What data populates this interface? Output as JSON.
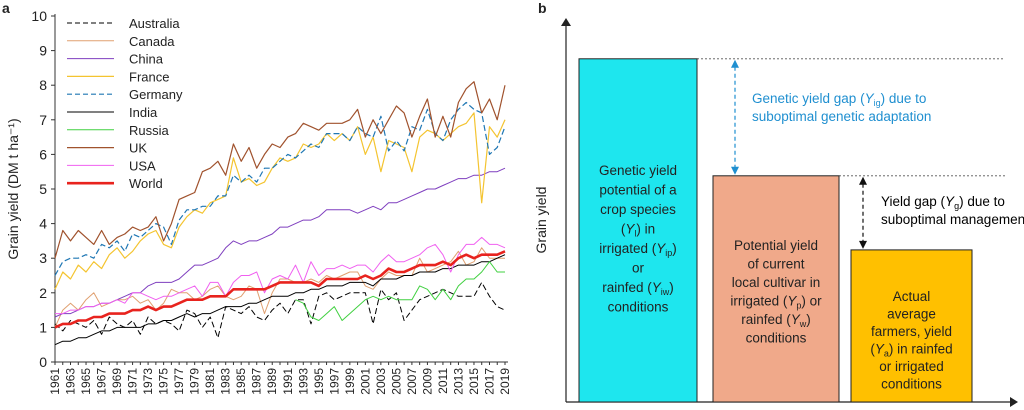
{
  "panel_a": {
    "label": "a"
  },
  "panel_b": {
    "label": "b"
  },
  "chart_data": [
    {
      "type": "line",
      "ylabel": "Grain yield (DM t ha⁻¹)",
      "ylim": [
        0,
        10
      ],
      "yticks": [
        0,
        1,
        2,
        3,
        4,
        5,
        6,
        7,
        8,
        9,
        10
      ],
      "x": [
        1961,
        1962,
        1963,
        1964,
        1965,
        1966,
        1967,
        1968,
        1969,
        1970,
        1971,
        1972,
        1973,
        1974,
        1975,
        1976,
        1977,
        1978,
        1979,
        1980,
        1981,
        1982,
        1983,
        1984,
        1985,
        1986,
        1987,
        1988,
        1989,
        1990,
        1991,
        1992,
        1993,
        1994,
        1995,
        1996,
        1997,
        1998,
        1999,
        2000,
        2001,
        2002,
        2003,
        2004,
        2005,
        2006,
        2007,
        2008,
        2009,
        2010,
        2011,
        2012,
        2013,
        2014,
        2015,
        2016,
        2017,
        2018,
        2019
      ],
      "xticks": [
        "1961",
        "1963",
        "1965",
        "1967",
        "1969",
        "1971",
        "1973",
        "1975",
        "1977",
        "1979",
        "1981",
        "1983",
        "1985",
        "1987",
        "1989",
        "1991",
        "1993",
        "1995",
        "1997",
        "1999",
        "2001",
        "2003",
        "2005",
        "2007",
        "2009",
        "2011",
        "2013",
        "2015",
        "2017",
        "2019"
      ],
      "legend_position": "top-left",
      "series": [
        {
          "name": "Australia",
          "color": "#000000",
          "dash": "dashed",
          "width": 1,
          "values": [
            1.1,
            0.9,
            1.2,
            1.1,
            1.0,
            1.2,
            0.8,
            1.3,
            1.1,
            1.0,
            1.2,
            0.8,
            1.3,
            1.1,
            1.2,
            1.1,
            0.9,
            1.5,
            1.4,
            1.0,
            1.3,
            0.7,
            1.6,
            1.5,
            1.4,
            1.6,
            1.3,
            1.2,
            1.5,
            1.7,
            1.4,
            1.8,
            1.8,
            1.1,
            1.9,
            2.0,
            1.8,
            1.9,
            2.0,
            2.0,
            2.0,
            1.1,
            2.1,
            1.8,
            2.0,
            1.2,
            1.5,
            1.8,
            1.9,
            2.0,
            2.1,
            2.0,
            1.9,
            1.9,
            1.9,
            2.3,
            1.9,
            1.6,
            1.5
          ]
        },
        {
          "name": "Canada",
          "color": "#e0a070",
          "dash": "solid",
          "width": 1,
          "values": [
            1.0,
            1.5,
            1.7,
            1.5,
            1.8,
            2.0,
            1.6,
            1.7,
            1.8,
            1.8,
            1.9,
            1.7,
            1.8,
            1.5,
            1.7,
            2.1,
            2.0,
            2.0,
            1.8,
            1.9,
            2.1,
            2.2,
            1.9,
            1.8,
            1.9,
            2.2,
            2.1,
            1.4,
            2.0,
            2.4,
            2.4,
            2.3,
            2.3,
            2.4,
            2.3,
            2.5,
            2.4,
            2.5,
            2.6,
            2.6,
            2.2,
            2.1,
            2.4,
            2.6,
            2.5,
            2.5,
            2.5,
            3.0,
            2.6,
            2.7,
            2.8,
            2.9,
            3.2,
            2.8,
            2.9,
            3.3,
            3.0,
            3.0,
            3.0
          ]
        },
        {
          "name": "China",
          "color": "#7f3fbf",
          "dash": "solid",
          "width": 1,
          "values": [
            1.3,
            1.4,
            1.4,
            1.5,
            1.6,
            1.6,
            1.7,
            1.7,
            1.8,
            1.9,
            2.0,
            2.0,
            2.2,
            2.3,
            2.3,
            2.3,
            2.4,
            2.6,
            2.8,
            2.8,
            2.9,
            3.0,
            3.3,
            3.5,
            3.4,
            3.5,
            3.5,
            3.6,
            3.7,
            3.9,
            3.9,
            4.0,
            4.1,
            4.1,
            4.2,
            4.4,
            4.4,
            4.4,
            4.4,
            4.3,
            4.4,
            4.5,
            4.4,
            4.6,
            4.6,
            4.7,
            4.8,
            4.9,
            5.0,
            5.0,
            5.1,
            5.2,
            5.3,
            5.3,
            5.4,
            5.4,
            5.5,
            5.5,
            5.6
          ]
        },
        {
          "name": "France",
          "color": "#f4c430",
          "dash": "solid",
          "width": 1.2,
          "values": [
            2.1,
            2.6,
            2.4,
            2.8,
            2.6,
            2.9,
            2.7,
            3.1,
            3.3,
            3.0,
            3.2,
            3.5,
            3.7,
            3.8,
            3.4,
            3.3,
            3.9,
            4.2,
            4.4,
            4.3,
            4.6,
            4.7,
            4.8,
            5.9,
            5.2,
            5.3,
            5.1,
            5.2,
            5.6,
            5.9,
            5.8,
            5.9,
            6.3,
            6.2,
            6.3,
            6.6,
            6.4,
            6.6,
            6.4,
            6.8,
            6.0,
            6.5,
            5.5,
            6.4,
            6.3,
            6.2,
            5.5,
            6.5,
            6.7,
            6.6,
            6.4,
            6.6,
            6.8,
            6.9,
            7.2,
            4.6,
            6.8,
            6.5,
            7.0
          ]
        },
        {
          "name": "Germany",
          "color": "#1f77b4",
          "dash": "dashed",
          "width": 1.2,
          "values": [
            2.5,
            2.9,
            3.0,
            3.0,
            3.1,
            3.0,
            3.4,
            3.3,
            3.5,
            3.2,
            3.7,
            3.6,
            3.8,
            4.0,
            3.9,
            3.4,
            4.1,
            4.4,
            4.4,
            4.5,
            4.5,
            4.8,
            4.8,
            5.4,
            5.2,
            5.4,
            5.2,
            5.6,
            5.6,
            5.8,
            6.0,
            5.9,
            6.1,
            6.3,
            6.2,
            6.6,
            6.6,
            6.6,
            6.4,
            6.8,
            6.6,
            6.5,
            7.1,
            6.1,
            6.4,
            6.1,
            6.8,
            6.7,
            7.3,
            6.6,
            6.4,
            7.0,
            7.3,
            7.5,
            7.3,
            7.2,
            6.0,
            6.2,
            6.8
          ]
        },
        {
          "name": "India",
          "color": "#000000",
          "dash": "solid",
          "width": 1,
          "values": [
            0.5,
            0.6,
            0.6,
            0.7,
            0.7,
            0.8,
            0.9,
            0.9,
            1.0,
            1.0,
            1.0,
            1.0,
            1.1,
            1.1,
            1.2,
            1.2,
            1.3,
            1.4,
            1.3,
            1.4,
            1.4,
            1.5,
            1.6,
            1.6,
            1.6,
            1.7,
            1.7,
            1.8,
            1.9,
            1.9,
            1.9,
            2.0,
            2.0,
            2.1,
            2.1,
            2.2,
            2.2,
            2.2,
            2.3,
            2.3,
            2.3,
            2.2,
            2.4,
            2.4,
            2.4,
            2.5,
            2.5,
            2.6,
            2.6,
            2.6,
            2.7,
            2.7,
            2.8,
            2.8,
            2.8,
            2.9,
            2.9,
            3.0,
            3.1
          ]
        },
        {
          "name": "Russia",
          "color": "#40d040",
          "dash": "solid",
          "width": 1,
          "values": [
            null,
            null,
            null,
            null,
            null,
            null,
            null,
            null,
            null,
            null,
            null,
            null,
            null,
            null,
            null,
            null,
            null,
            null,
            null,
            null,
            null,
            null,
            null,
            null,
            null,
            null,
            null,
            null,
            null,
            null,
            null,
            1.8,
            1.7,
            1.3,
            1.2,
            1.4,
            1.6,
            1.2,
            1.4,
            1.6,
            1.8,
            1.9,
            1.8,
            1.9,
            1.8,
            1.8,
            1.8,
            2.2,
            2.1,
            1.8,
            2.1,
            1.8,
            2.2,
            2.4,
            2.4,
            2.6,
            2.9,
            2.6,
            2.6
          ]
        },
        {
          "name": "UK",
          "color": "#a0522d",
          "dash": "solid",
          "width": 1.2,
          "values": [
            3.0,
            3.8,
            3.5,
            3.8,
            3.6,
            3.4,
            3.8,
            3.4,
            3.6,
            3.7,
            3.9,
            3.8,
            3.9,
            4.2,
            3.5,
            4.0,
            4.7,
            4.8,
            4.9,
            5.5,
            5.6,
            5.8,
            5.4,
            6.3,
            5.8,
            6.2,
            5.6,
            6.0,
            6.3,
            6.2,
            6.5,
            6.6,
            6.9,
            6.8,
            6.7,
            6.9,
            6.9,
            6.9,
            7.0,
            7.3,
            6.5,
            7.0,
            6.6,
            7.0,
            7.4,
            7.2,
            6.5,
            7.1,
            7.6,
            6.5,
            7.1,
            6.5,
            7.5,
            7.9,
            8.1,
            7.2,
            7.6,
            7.0,
            8.0
          ]
        },
        {
          "name": "USA",
          "color": "#f060f0",
          "dash": "solid",
          "width": 1,
          "values": [
            1.4,
            1.4,
            1.5,
            1.5,
            1.6,
            1.6,
            1.7,
            1.7,
            1.8,
            1.7,
            2.0,
            2.0,
            1.9,
            1.8,
            1.9,
            1.9,
            2.0,
            2.1,
            2.2,
            1.9,
            2.3,
            2.3,
            1.9,
            2.3,
            2.5,
            2.5,
            2.6,
            2.0,
            2.4,
            2.5,
            2.4,
            2.8,
            2.3,
            2.9,
            2.5,
            2.7,
            2.7,
            2.8,
            2.7,
            2.8,
            2.8,
            2.6,
            2.9,
            3.1,
            2.9,
            2.9,
            3.0,
            3.1,
            3.3,
            3.4,
            3.1,
            2.6,
            3.1,
            3.4,
            3.4,
            3.6,
            3.4,
            3.4,
            3.3
          ]
        },
        {
          "name": "World",
          "color": "#e8231e",
          "dash": "solid",
          "width": 2.6,
          "values": [
            1.0,
            1.1,
            1.1,
            1.2,
            1.2,
            1.3,
            1.3,
            1.4,
            1.4,
            1.4,
            1.5,
            1.5,
            1.6,
            1.5,
            1.6,
            1.6,
            1.7,
            1.8,
            1.8,
            1.8,
            1.9,
            1.9,
            1.9,
            2.1,
            2.1,
            2.1,
            2.1,
            2.1,
            2.2,
            2.3,
            2.3,
            2.3,
            2.3,
            2.3,
            2.2,
            2.4,
            2.4,
            2.4,
            2.4,
            2.4,
            2.5,
            2.4,
            2.5,
            2.7,
            2.6,
            2.6,
            2.7,
            2.8,
            2.8,
            2.8,
            2.9,
            2.8,
            3.0,
            3.1,
            3.0,
            3.1,
            3.1,
            3.1,
            3.2
          ]
        }
      ]
    },
    {
      "type": "bar",
      "ylabel": "Grain yield",
      "bars": [
        {
          "text": [
            "Genetic yield",
            "potential of a",
            "crop species",
            "(Yₗ) in",
            "irrigated (Y_ip)",
            "or",
            "rainfed (Y_iw)",
            "conditions"
          ],
          "color": "#1ee6ee",
          "value": 0.88
        },
        {
          "text": [
            "Potential yield",
            "of current",
            "local cultivar in",
            "irrigated (Yₚ) or",
            "rainfed (Y_w)",
            "conditions"
          ],
          "color": "#f0a98a",
          "value": 0.58
        },
        {
          "text": [
            "Actual",
            "average",
            "farmers, yield",
            "(Yₐ) in rainfed",
            "or irrigated",
            "conditions"
          ],
          "color": "#ffc000",
          "value": 0.39
        }
      ],
      "annotations": [
        {
          "text": [
            "Genetic yield gap (Y_ig) due to",
            "suboptimal genetic adaptation"
          ],
          "color": "#1f8fd0"
        },
        {
          "text": [
            "Yield gap (Y_g) due to",
            "suboptimal management"
          ],
          "color": "#000000"
        }
      ]
    }
  ]
}
